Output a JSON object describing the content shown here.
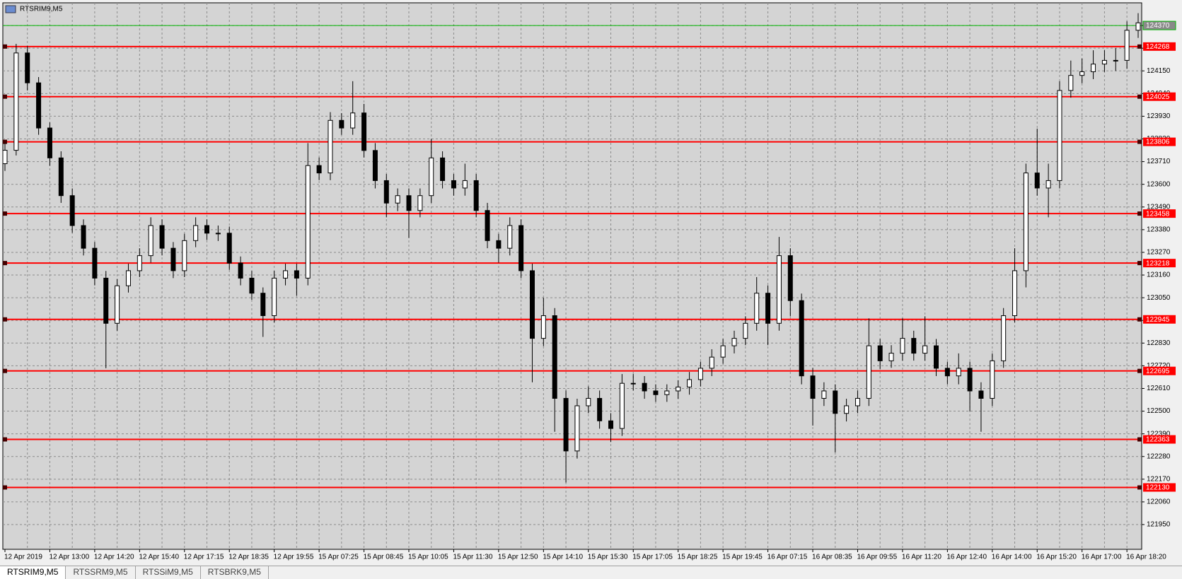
{
  "chart_data": {
    "type": "candlestick",
    "title": "RTSRIM9,M5",
    "categories": [
      "12 Apr 2019",
      null,
      null,
      null,
      "12 Apr 13:00",
      null,
      null,
      null,
      "12 Apr 14:20",
      null,
      null,
      null,
      "12 Apr 15:40",
      null,
      null,
      null,
      "12 Apr 17:15",
      null,
      null,
      null,
      "12 Apr 18:35",
      null,
      null,
      null,
      "12 Apr 19:55",
      null,
      null,
      null,
      "15 Apr 07:25",
      null,
      null,
      null,
      "15 Apr 08:45",
      null,
      null,
      null,
      "15 Apr 10:05",
      null,
      null,
      null,
      "15 Apr 11:30",
      null,
      null,
      null,
      "15 Apr 12:50",
      null,
      null,
      null,
      "15 Apr 14:10",
      null,
      null,
      null,
      "15 Apr 15:30",
      null,
      null,
      null,
      "15 Apr 17:05",
      null,
      null,
      null,
      "15 Apr 18:25",
      null,
      null,
      null,
      "15 Apr 19:45",
      null,
      null,
      null,
      "16 Apr 07:15",
      null,
      null,
      null,
      "16 Apr 08:35",
      null,
      null,
      null,
      "16 Apr 09:55",
      null,
      null,
      null,
      "16 Apr 11:20",
      null,
      null,
      null,
      "16 Apr 12:40",
      null,
      null,
      null,
      "16 Apr 14:00",
      null,
      null,
      null,
      "16 Apr 15:20",
      null,
      null,
      null,
      "16 Apr 17:00",
      null,
      null,
      null,
      "16 Apr 18:20",
      null
    ],
    "open": [
      123700,
      123765,
      124237,
      124092,
      123873,
      123728,
      123545,
      123400,
      123290,
      123145,
      122926,
      123108,
      123181,
      123254,
      123400,
      123290,
      123181,
      123327,
      123400,
      123363,
      123363,
      123218,
      123145,
      123072,
      122963,
      123145,
      123181,
      123145,
      123691,
      123655,
      123910,
      123873,
      123946,
      123764,
      123618,
      123509,
      123545,
      123473,
      123545,
      123728,
      123618,
      123582,
      123618,
      123473,
      123327,
      123290,
      123400,
      123181,
      122853,
      122963,
      122562,
      122307,
      122526,
      122562,
      122453,
      122416,
      122635,
      122635,
      122598,
      122580,
      122598,
      122617,
      122653,
      122708,
      122762,
      122817,
      122853,
      122926,
      123072,
      122926,
      123254,
      123036,
      122671,
      122562,
      122598,
      122489,
      122526,
      122562,
      122817,
      122744,
      122781,
      122853,
      122781,
      122817,
      122708,
      122671,
      122708,
      122598,
      122562,
      122744,
      122963,
      123181,
      123655,
      123582,
      123618,
      124055,
      124128,
      124146,
      124183,
      124201,
      124201,
      124347
    ],
    "high": [
      123800,
      124281,
      124270,
      124120,
      123900,
      123760,
      123580,
      123430,
      123320,
      123180,
      123140,
      123215,
      123290,
      123440,
      123430,
      123320,
      123360,
      123440,
      123430,
      123400,
      123395,
      123250,
      123180,
      123100,
      123180,
      123215,
      123215,
      123800,
      123730,
      123950,
      123945,
      124100,
      123990,
      123800,
      123650,
      123580,
      123580,
      123580,
      123820,
      123760,
      123650,
      123700,
      123650,
      123510,
      123360,
      123440,
      123430,
      123215,
      123050,
      123000,
      122600,
      122560,
      122620,
      122600,
      122490,
      122680,
      122680,
      122670,
      122630,
      122630,
      122650,
      122690,
      122740,
      122800,
      122850,
      122890,
      122960,
      123150,
      123110,
      123345,
      123290,
      123070,
      122710,
      122640,
      122630,
      122560,
      122600,
      122950,
      122850,
      122820,
      122950,
      122890,
      122960,
      122850,
      122740,
      122780,
      122740,
      122640,
      122780,
      123000,
      123290,
      123700,
      123870,
      123700,
      124100,
      124200,
      124210,
      124250,
      124250,
      124260,
      124390,
      124430
    ],
    "low": [
      123665,
      123740,
      124055,
      123840,
      123690,
      123510,
      123365,
      123255,
      123110,
      122708,
      122890,
      123075,
      123150,
      123220,
      123255,
      123145,
      123150,
      123295,
      123330,
      123325,
      123185,
      123110,
      123040,
      122860,
      122930,
      123110,
      123060,
      123110,
      123620,
      123620,
      123840,
      123840,
      123730,
      123580,
      123440,
      123470,
      123340,
      123440,
      123510,
      123580,
      123545,
      123545,
      123440,
      123290,
      123220,
      123255,
      123145,
      122640,
      122815,
      122400,
      122154,
      122270,
      122490,
      122415,
      122350,
      122380,
      122600,
      122560,
      122545,
      122545,
      122560,
      122580,
      122620,
      122670,
      122730,
      122780,
      122820,
      122890,
      122820,
      122890,
      122960,
      122630,
      122430,
      122525,
      122300,
      122450,
      122490,
      122525,
      122705,
      122710,
      122745,
      122745,
      122745,
      122670,
      122630,
      122630,
      122500,
      122400,
      122525,
      122710,
      122930,
      123100,
      123545,
      123440,
      123580,
      124020,
      124090,
      124110,
      124145,
      124150,
      124160,
      124310
    ],
    "close": [
      123765,
      124237,
      124092,
      123873,
      123728,
      123545,
      123400,
      123290,
      123145,
      122926,
      123108,
      123181,
      123254,
      123400,
      123290,
      123181,
      123327,
      123400,
      123363,
      123363,
      123218,
      123145,
      123072,
      122963,
      123145,
      123181,
      123145,
      123691,
      123655,
      123910,
      123873,
      123946,
      123764,
      123618,
      123509,
      123545,
      123473,
      123545,
      123728,
      123618,
      123582,
      123618,
      123473,
      123327,
      123290,
      123400,
      123181,
      122853,
      122963,
      122562,
      122307,
      122526,
      122562,
      122453,
      122416,
      122635,
      122635,
      122598,
      122580,
      122598,
      122617,
      122653,
      122708,
      122762,
      122817,
      122853,
      122926,
      123072,
      122926,
      123254,
      123036,
      122671,
      122562,
      122598,
      122489,
      122526,
      122562,
      122817,
      122744,
      122781,
      122853,
      122781,
      122817,
      122708,
      122671,
      122708,
      122598,
      122562,
      122744,
      122963,
      123181,
      123655,
      123582,
      123618,
      124055,
      124128,
      124146,
      124183,
      124201,
      124201,
      124347,
      124383
    ],
    "ylim": [
      121830,
      124480
    ],
    "yticks": [
      121950,
      122060,
      122170,
      122280,
      122390,
      122500,
      122610,
      122720,
      122830,
      122940,
      123050,
      123160,
      123270,
      123380,
      123490,
      123600,
      123710,
      123820,
      123930,
      124040,
      124150,
      124260,
      124370
    ],
    "levels": [
      124268,
      124025,
      123806,
      123458,
      123218,
      122945,
      122695,
      122363,
      122130
    ],
    "level_color": "#ff0000",
    "current_price": 124370,
    "current_price_color": "#00b400",
    "up_color": "#ffffff",
    "down_color": "#000000",
    "wick_color": "#000000",
    "background": "#d4d4d4",
    "grid": true
  },
  "tabs": [
    "RTSRIM9,M5",
    "RTSSRM9,M5",
    "RTSSiM9,M5",
    "RTSBRK9,M5"
  ]
}
